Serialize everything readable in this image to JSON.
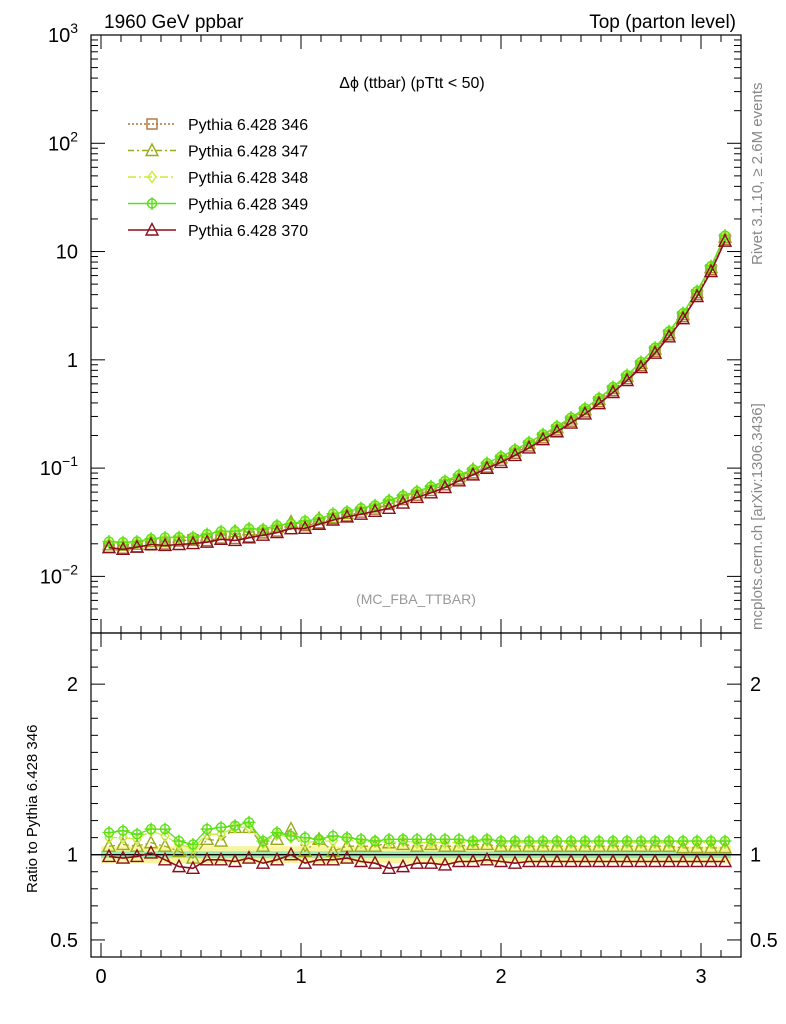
{
  "header": {
    "left_title": "1960 GeV ppbar",
    "right_title": "Top (parton level)"
  },
  "side_labels": {
    "rivet": "Rivet 3.1.10, ≥ 2.6M events",
    "mcplots": "mcplots.cern.ch [arXiv:1306.3436]"
  },
  "chart_data": [
    {
      "type": "line",
      "title": "Δϕ (ttbar) (pTtt < 50)",
      "watermark": "(MC_FBA_TTBAR)",
      "xlabel": "",
      "ylabel": "",
      "xlim": [
        -0.05,
        3.2
      ],
      "ylim": [
        0.003,
        1000
      ],
      "yscale": "log",
      "x_ticks": [
        "0",
        "1",
        "2",
        "3"
      ],
      "y_ticks": [
        "10^-2",
        "10^-1",
        "1",
        "10",
        "10^2",
        "10^3"
      ],
      "legend_position": "top-left",
      "x": [
        0.04,
        0.11,
        0.18,
        0.25,
        0.32,
        0.39,
        0.46,
        0.53,
        0.6,
        0.67,
        0.74,
        0.81,
        0.88,
        0.95,
        1.02,
        1.09,
        1.16,
        1.23,
        1.3,
        1.37,
        1.44,
        1.51,
        1.58,
        1.65,
        1.72,
        1.79,
        1.86,
        1.93,
        2.0,
        2.07,
        2.14,
        2.21,
        2.28,
        2.35,
        2.42,
        2.49,
        2.56,
        2.63,
        2.7,
        2.77,
        2.84,
        2.91,
        2.98,
        3.05,
        3.12
      ],
      "series": [
        {
          "name": "Pythia 6.428 346",
          "color": "#b0703a",
          "dash": "2,2",
          "marker": "square",
          "values": [
            0.0186,
            0.0182,
            0.0188,
            0.0195,
            0.0199,
            0.0212,
            0.0218,
            0.0214,
            0.0226,
            0.0224,
            0.0232,
            0.0252,
            0.0262,
            0.0276,
            0.0294,
            0.0312,
            0.0342,
            0.0362,
            0.0392,
            0.0418,
            0.0462,
            0.0512,
            0.0562,
            0.0622,
            0.0702,
            0.0792,
            0.0902,
            0.1022,
            0.1182,
            0.1372,
            0.1602,
            0.1902,
            0.2252,
            0.2712,
            0.3302,
            0.4102,
            0.5202,
            0.6702,
            0.8852,
            1.2002,
            1.7002,
            2.5002,
            4.0002,
            6.8002,
            13.0
          ]
        },
        {
          "name": "Pythia 6.428 347",
          "color": "#9aaa1a",
          "dash": "6,3,2,3",
          "marker": "triangle",
          "values": [
            0.0196,
            0.0194,
            0.0198,
            0.0209,
            0.021,
            0.0217,
            0.0215,
            0.0233,
            0.0245,
            0.0259,
            0.0269,
            0.0264,
            0.0285,
            0.0318,
            0.0301,
            0.0341,
            0.035,
            0.038,
            0.0414,
            0.0438,
            0.0495,
            0.0546,
            0.0594,
            0.0663,
            0.0738,
            0.0837,
            0.0964,
            0.1085,
            0.1248,
            0.145,
            0.1691,
            0.2,
            0.2365,
            0.2846,
            0.3465,
            0.4306,
            0.5449,
            0.7024,
            0.9271,
            1.2565,
            1.7786,
            2.6113,
            4.1686,
            7.1027,
            13.57
          ]
        },
        {
          "name": "Pythia 6.428 348",
          "color": "#c8ee3a",
          "dash": "8,3,2,3",
          "marker": "diamond",
          "values": [
            0.0204,
            0.0201,
            0.0206,
            0.0222,
            0.0222,
            0.0225,
            0.0226,
            0.0239,
            0.0253,
            0.0259,
            0.027,
            0.0269,
            0.0293,
            0.0305,
            0.0316,
            0.0338,
            0.0369,
            0.0396,
            0.042,
            0.045,
            0.0495,
            0.0553,
            0.0603,
            0.0668,
            0.0751,
            0.0848,
            0.0965,
            0.1104,
            0.1265,
            0.147,
            0.1715,
            0.2037,
            0.241,
            0.2902,
            0.3533,
            0.439,
            0.5565,
            0.7172,
            0.9472,
            1.2842,
            1.8191,
            2.6752,
            4.2802,
            7.2762,
            13.91
          ]
        },
        {
          "name": "Pythia 6.428 349",
          "color": "#5ce01a",
          "dash": "",
          "marker": "circle",
          "values": [
            0.021,
            0.0207,
            0.021,
            0.0223,
            0.0229,
            0.023,
            0.023,
            0.0246,
            0.0261,
            0.0262,
            0.0277,
            0.0272,
            0.0296,
            0.0307,
            0.0325,
            0.034,
            0.0379,
            0.0397,
            0.0427,
            0.0453,
            0.0503,
            0.0558,
            0.0611,
            0.0677,
            0.0762,
            0.0862,
            0.0975,
            0.1114,
            0.1277,
            0.1482,
            0.173,
            0.2054,
            0.2432,
            0.2929,
            0.3566,
            0.443,
            0.5618,
            0.7239,
            0.956,
            1.2962,
            1.8361,
            2.7002,
            4.3202,
            7.3442,
            14.04
          ]
        },
        {
          "name": "Pythia 6.428 370",
          "color": "#8b0f1a",
          "dash": "",
          "marker": "triangle",
          "values": [
            0.0184,
            0.0178,
            0.0186,
            0.0197,
            0.0193,
            0.0197,
            0.0201,
            0.0207,
            0.022,
            0.0215,
            0.0227,
            0.024,
            0.0254,
            0.0276,
            0.0278,
            0.0303,
            0.0331,
            0.0354,
            0.0375,
            0.0399,
            0.0425,
            0.0476,
            0.0536,
            0.0591,
            0.0662,
            0.0763,
            0.0866,
            0.0995,
            0.1129,
            0.131,
            0.1536,
            0.1832,
            0.2167,
            0.2609,
            0.3163,
            0.3937,
            0.4993,
            0.6437,
            0.8496,
            1.1526,
            1.6321,
            2.4002,
            3.8402,
            6.5282,
            12.48
          ]
        }
      ]
    },
    {
      "type": "line",
      "title": "",
      "xlabel": "",
      "ylabel": "Ratio to Pythia 6.428 346",
      "xlim": [
        -0.05,
        3.2
      ],
      "ylim": [
        0.4,
        2.3
      ],
      "x_ticks": [
        "0",
        "1",
        "2",
        "3"
      ],
      "y_ticks": [
        "0.5",
        "1",
        "2"
      ],
      "reference_line": 1,
      "uncertainty_band": {
        "inner": 0.02,
        "outer": 0.05,
        "inner_color": "#9ee8b0",
        "outer_color": "#f8f4a0"
      },
      "x": [
        0.04,
        0.11,
        0.18,
        0.25,
        0.32,
        0.39,
        0.46,
        0.53,
        0.6,
        0.67,
        0.74,
        0.81,
        0.88,
        0.95,
        1.02,
        1.09,
        1.16,
        1.23,
        1.3,
        1.37,
        1.44,
        1.51,
        1.58,
        1.65,
        1.72,
        1.79,
        1.86,
        1.93,
        2.0,
        2.07,
        2.14,
        2.21,
        2.28,
        2.35,
        2.42,
        2.49,
        2.56,
        2.63,
        2.7,
        2.77,
        2.84,
        2.91,
        2.98,
        3.05,
        3.12
      ],
      "series": [
        {
          "name": "Pythia 6.428 346",
          "values": [
            1,
            1,
            1,
            1,
            1,
            1,
            1,
            1,
            1,
            1,
            1,
            1,
            1,
            1,
            1,
            1,
            1,
            1,
            1,
            1,
            1,
            1,
            1,
            1,
            1,
            1,
            1,
            1,
            1,
            1,
            1,
            1,
            1,
            1,
            1,
            1,
            1,
            1,
            1,
            1,
            1,
            1,
            1,
            1,
            1
          ]
        },
        {
          "name": "Pythia 6.428 347",
          "values": [
            1.05,
            1.06,
            1.05,
            1.07,
            1.05,
            1.02,
            0.98,
            1.09,
            1.08,
            1.16,
            1.16,
            1.05,
            1.09,
            1.15,
            1.02,
            1.09,
            1.02,
            1.05,
            1.05,
            1.05,
            1.07,
            1.06,
            1.05,
            1.06,
            1.05,
            1.05,
            1.06,
            1.06,
            1.05,
            1.05,
            1.05,
            1.05,
            1.05,
            1.05,
            1.05,
            1.05,
            1.05,
            1.05,
            1.05,
            1.05,
            1.05,
            1.04,
            1.04,
            1.04,
            1.04
          ]
        },
        {
          "name": "Pythia 6.428 348",
          "values": [
            1.1,
            1.1,
            1.09,
            1.14,
            1.11,
            1.06,
            1.04,
            1.12,
            1.12,
            1.16,
            1.16,
            1.07,
            1.12,
            1.1,
            1.07,
            1.08,
            1.08,
            1.09,
            1.07,
            1.08,
            1.07,
            1.08,
            1.07,
            1.07,
            1.07,
            1.07,
            1.07,
            1.08,
            1.07,
            1.07,
            1.07,
            1.07,
            1.07,
            1.07,
            1.07,
            1.07,
            1.07,
            1.07,
            1.07,
            1.07,
            1.07,
            1.07,
            1.07,
            1.07,
            1.07
          ]
        },
        {
          "name": "Pythia 6.428 349",
          "values": [
            1.13,
            1.14,
            1.12,
            1.15,
            1.15,
            1.08,
            1.06,
            1.15,
            1.16,
            1.17,
            1.19,
            1.08,
            1.13,
            1.11,
            1.1,
            1.09,
            1.11,
            1.1,
            1.09,
            1.08,
            1.09,
            1.09,
            1.09,
            1.09,
            1.09,
            1.09,
            1.08,
            1.09,
            1.08,
            1.08,
            1.08,
            1.08,
            1.08,
            1.08,
            1.08,
            1.08,
            1.08,
            1.08,
            1.08,
            1.08,
            1.08,
            1.08,
            1.08,
            1.08,
            1.08
          ]
        },
        {
          "name": "Pythia 6.428 370",
          "values": [
            0.99,
            0.98,
            0.99,
            1.01,
            0.97,
            0.93,
            0.92,
            0.97,
            0.97,
            0.96,
            0.98,
            0.95,
            0.97,
            1.0,
            0.95,
            0.97,
            0.97,
            0.98,
            0.96,
            0.95,
            0.92,
            0.93,
            0.95,
            0.95,
            0.94,
            0.96,
            0.96,
            0.97,
            0.96,
            0.95,
            0.96,
            0.96,
            0.96,
            0.96,
            0.96,
            0.96,
            0.96,
            0.96,
            0.96,
            0.96,
            0.96,
            0.96,
            0.96,
            0.96,
            0.96
          ]
        }
      ]
    }
  ]
}
